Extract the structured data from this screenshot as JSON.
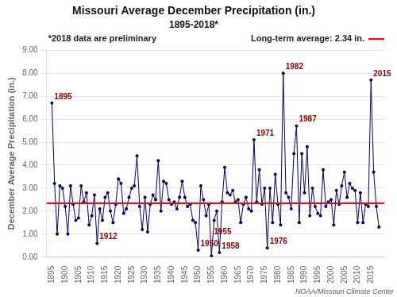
{
  "chart_data": {
    "type": "line",
    "title": "Missouri Average December Precipitation (in.)",
    "subtitle": "1895-2018*",
    "y_label": "December Average Precipitation (in.)",
    "note": "*2018 data are preliminary",
    "credit": "NOAA/Missouri Climate Center",
    "x": [
      1895,
      1896,
      1897,
      1898,
      1899,
      1900,
      1901,
      1902,
      1903,
      1904,
      1905,
      1906,
      1907,
      1908,
      1909,
      1910,
      1911,
      1912,
      1913,
      1914,
      1915,
      1916,
      1917,
      1918,
      1919,
      1920,
      1921,
      1922,
      1923,
      1924,
      1925,
      1926,
      1927,
      1928,
      1929,
      1930,
      1931,
      1932,
      1933,
      1934,
      1935,
      1936,
      1937,
      1938,
      1939,
      1940,
      1941,
      1942,
      1943,
      1944,
      1945,
      1946,
      1947,
      1948,
      1949,
      1950,
      1951,
      1952,
      1953,
      1954,
      1955,
      1956,
      1957,
      1958,
      1959,
      1960,
      1961,
      1962,
      1963,
      1964,
      1965,
      1966,
      1967,
      1968,
      1969,
      1970,
      1971,
      1972,
      1973,
      1974,
      1975,
      1976,
      1977,
      1978,
      1979,
      1980,
      1981,
      1982,
      1983,
      1984,
      1985,
      1986,
      1987,
      1988,
      1989,
      1990,
      1991,
      1992,
      1993,
      1994,
      1995,
      1996,
      1997,
      1998,
      1999,
      2000,
      2001,
      2002,
      2003,
      2004,
      2005,
      2006,
      2007,
      2008,
      2009,
      2010,
      2011,
      2012,
      2013,
      2014,
      2015,
      2016,
      2017,
      2018
    ],
    "series": [
      {
        "color": "#000066",
        "marker": "circle",
        "values": [
          6.7,
          3.2,
          1.0,
          3.1,
          3.0,
          2.2,
          1.0,
          3.1,
          2.3,
          1.6,
          1.7,
          3.1,
          2.4,
          2.8,
          1.4,
          1.8,
          2.7,
          0.6,
          2.1,
          1.6,
          2.6,
          2.8,
          2.0,
          1.5,
          2.3,
          3.4,
          3.2,
          1.9,
          2.1,
          2.6,
          3.0,
          3.1,
          4.4,
          2.2,
          1.2,
          2.6,
          1.1,
          2.3,
          2.7,
          2.5,
          4.2,
          2.0,
          3.3,
          3.2,
          2.5,
          2.3,
          2.4,
          2.1,
          2.6,
          3.3,
          2.6,
          2.2,
          2.3,
          1.6,
          1.5,
          0.3,
          3.1,
          2.5,
          1.8,
          2.3,
          0.05,
          1.6,
          2.0,
          0.2,
          2.4,
          3.9,
          2.8,
          2.7,
          2.9,
          2.4,
          2.5,
          1.5,
          2.3,
          2.6,
          2.1,
          2.0,
          5.1,
          2.4,
          3.8,
          2.3,
          3.0,
          0.4,
          3.0,
          1.5,
          3.6,
          2.3,
          1.4,
          8.0,
          2.8,
          2.6,
          2.1,
          4.5,
          5.7,
          1.5,
          4.5,
          2.8,
          4.8,
          1.8,
          3.0,
          2.2,
          1.9,
          1.8,
          3.8,
          2.2,
          2.4,
          2.5,
          1.4,
          2.9,
          2.3,
          3.1,
          3.7,
          2.6,
          3.2,
          3.0,
          2.9,
          1.5,
          2.8,
          1.5,
          2.3,
          2.2,
          7.7,
          3.7,
          2.2,
          1.3
        ]
      }
    ],
    "hlines": [
      {
        "y": 2.34,
        "label": "Long-term average: 2.34 in.",
        "color": "#FF0000"
      }
    ],
    "annotations": [
      {
        "text": "1895",
        "x": 1895,
        "y": 6.7,
        "color": "#8B0000"
      },
      {
        "text": "1912",
        "x": 1912,
        "y": 0.6,
        "color": "#8B0000"
      },
      {
        "text": "1950",
        "x": 1950,
        "y": 0.3,
        "color": "#8B0000"
      },
      {
        "text": "1955",
        "x": 1955,
        "y": 0.05,
        "color": "#8B0000"
      },
      {
        "text": "1958",
        "x": 1958,
        "y": 0.2,
        "color": "#8B0000"
      },
      {
        "text": "1971",
        "x": 1971,
        "y": 5.1,
        "color": "#8B0000"
      },
      {
        "text": "1976",
        "x": 1976,
        "y": 0.4,
        "color": "#8B0000"
      },
      {
        "text": "1982",
        "x": 1982,
        "y": 8.0,
        "color": "#8B0000"
      },
      {
        "text": "1987",
        "x": 1987,
        "y": 5.7,
        "color": "#8B0000"
      },
      {
        "text": "2015",
        "x": 2015,
        "y": 7.7,
        "color": "#8B0000"
      }
    ],
    "xlim": [
      1893,
      2020
    ],
    "xticks": [
      1895,
      1900,
      1905,
      1910,
      1915,
      1920,
      1925,
      1930,
      1935,
      1940,
      1945,
      1950,
      1955,
      1960,
      1965,
      1970,
      1975,
      1980,
      1985,
      1990,
      1995,
      2000,
      2005,
      2010,
      2015
    ],
    "ylim": [
      0.0,
      9.0
    ],
    "yticks": [
      {
        "value": 0,
        "label": "0.00"
      },
      {
        "value": 1,
        "label": "1.00"
      },
      {
        "value": 2,
        "label": "2.00"
      },
      {
        "value": 3,
        "label": "3.00"
      },
      {
        "value": 4,
        "label": "4.00"
      },
      {
        "value": 5,
        "label": "5.00"
      },
      {
        "value": 6,
        "label": "6.00"
      },
      {
        "value": 7,
        "label": "7.00"
      },
      {
        "value": 8,
        "label": "8.00"
      },
      {
        "value": 9,
        "label": "9.00"
      }
    ],
    "grid": "y"
  }
}
